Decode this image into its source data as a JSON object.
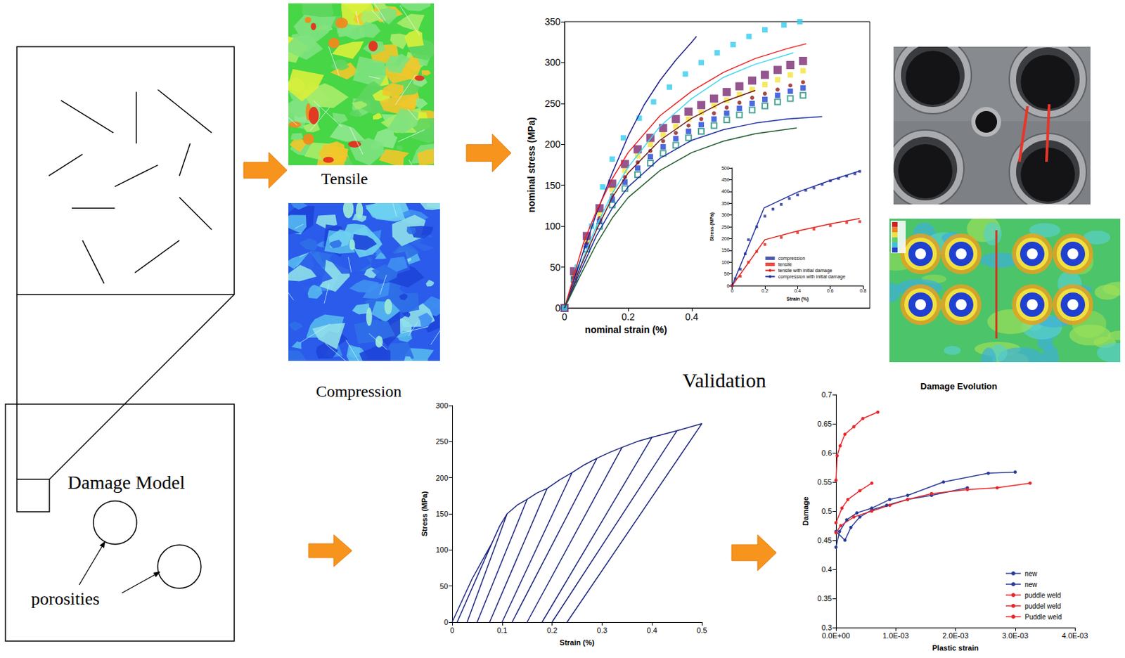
{
  "diagram": {
    "damage_model": {
      "title": "Damage Model",
      "porosity_label": "porosities"
    },
    "contour_labels": [
      "Tensile",
      "Compression"
    ],
    "validation_label": "Validation"
  },
  "chart_data": [
    {
      "type": "line",
      "xlabel": "nominal strain (%)",
      "ylabel": "nominal stress (MPa)",
      "xlim": [
        0,
        0.96
      ],
      "xticks": [
        0,
        0.2,
        0.4
      ],
      "ylim": [
        0,
        350
      ],
      "yticks": [
        0,
        50,
        100,
        150,
        200,
        250,
        300,
        350
      ],
      "grid": false,
      "series": [
        {
          "color": "#1c1c8e",
          "marker": "none",
          "line_style": "solid",
          "x": [
            0,
            0.03,
            0.06,
            0.1,
            0.15,
            0.2,
            0.25,
            0.3,
            0.35,
            0.4,
            0.415
          ],
          "values": [
            0,
            35,
            70,
            115,
            165,
            210,
            248,
            278,
            303,
            325,
            332
          ]
        },
        {
          "color": "#ee1c1c",
          "marker": "none",
          "line_style": "solid",
          "x": [
            0,
            0.03,
            0.06,
            0.1,
            0.15,
            0.2,
            0.3,
            0.4,
            0.5,
            0.6,
            0.7,
            0.76
          ],
          "values": [
            0,
            40,
            80,
            118,
            158,
            190,
            235,
            265,
            288,
            305,
            317,
            323
          ]
        },
        {
          "color": "#3fd8ee",
          "marker": "none",
          "line_style": "solid",
          "x": [
            0,
            0.03,
            0.06,
            0.1,
            0.15,
            0.2,
            0.3,
            0.4,
            0.5,
            0.6,
            0.72
          ],
          "values": [
            0,
            30,
            62,
            100,
            140,
            172,
            222,
            256,
            282,
            298,
            312
          ]
        },
        {
          "color": "#6e1a1a",
          "marker": "none",
          "line_style": "solid",
          "x": [
            0,
            0.05,
            0.1,
            0.15,
            0.2,
            0.3,
            0.4,
            0.5,
            0.6
          ],
          "values": [
            0,
            50,
            95,
            135,
            165,
            205,
            232,
            252,
            266
          ]
        },
        {
          "color": "#1f2fa0",
          "marker": "none",
          "line_style": "solid",
          "x": [
            0,
            0.05,
            0.1,
            0.15,
            0.2,
            0.3,
            0.4,
            0.5,
            0.6,
            0.7,
            0.81
          ],
          "values": [
            0,
            45,
            88,
            122,
            148,
            183,
            205,
            218,
            226,
            231,
            234
          ]
        },
        {
          "color": "#1e5a2a",
          "marker": "none",
          "line_style": "solid",
          "x": [
            0,
            0.05,
            0.1,
            0.15,
            0.2,
            0.3,
            0.4,
            0.5,
            0.6,
            0.73
          ],
          "values": [
            0,
            40,
            78,
            110,
            135,
            168,
            190,
            204,
            213,
            220
          ]
        },
        {
          "color": "#1f8f7a",
          "marker": "open_square",
          "line_style": "none",
          "x": [
            0,
            0.03,
            0.07,
            0.11,
            0.15,
            0.19,
            0.23,
            0.27,
            0.31,
            0.35,
            0.39,
            0.43,
            0.47,
            0.51,
            0.55,
            0.59,
            0.63,
            0.67,
            0.71,
            0.75
          ],
          "values": [
            0,
            35,
            72,
            100,
            126,
            146,
            163,
            177,
            189,
            199,
            208,
            216,
            223,
            230,
            236,
            242,
            247,
            252,
            256,
            260
          ]
        },
        {
          "color": "#1f44d6",
          "marker": "square",
          "line_style": "none",
          "x": [
            0,
            0.03,
            0.07,
            0.11,
            0.15,
            0.19,
            0.23,
            0.27,
            0.31,
            0.35,
            0.39,
            0.43,
            0.47,
            0.51,
            0.55,
            0.59,
            0.63,
            0.67,
            0.71,
            0.75
          ],
          "values": [
            0,
            38,
            76,
            106,
            133,
            154,
            171,
            185,
            197,
            207,
            216,
            224,
            231,
            238,
            244,
            250,
            255,
            260,
            265,
            269
          ]
        },
        {
          "color": "#8e1b1b",
          "marker": "circle",
          "line_style": "none",
          "x": [
            0,
            0.03,
            0.07,
            0.11,
            0.15,
            0.19,
            0.23,
            0.27,
            0.31,
            0.35,
            0.39,
            0.43,
            0.47,
            0.51,
            0.55,
            0.59,
            0.63,
            0.67,
            0.71,
            0.75
          ],
          "values": [
            0,
            40,
            80,
            110,
            138,
            160,
            178,
            192,
            204,
            214,
            223,
            231,
            238,
            245,
            251,
            257,
            262,
            267,
            272,
            276
          ]
        },
        {
          "color": "#f2e33c",
          "marker": "square",
          "line_style": "none",
          "x": [
            0,
            0.03,
            0.07,
            0.11,
            0.15,
            0.19,
            0.23,
            0.27,
            0.31,
            0.35,
            0.39,
            0.43,
            0.47,
            0.51,
            0.55,
            0.59,
            0.63,
            0.67,
            0.71,
            0.75
          ],
          "values": [
            0,
            42,
            84,
            116,
            145,
            168,
            186,
            200,
            212,
            222,
            231,
            239,
            247,
            254,
            261,
            267,
            273,
            279,
            285,
            290
          ]
        },
        {
          "color": "#7a2a72",
          "marker": "large_square",
          "line_style": "none",
          "x": [
            0,
            0.03,
            0.07,
            0.11,
            0.15,
            0.19,
            0.23,
            0.27,
            0.31,
            0.35,
            0.39,
            0.43,
            0.47,
            0.51,
            0.55,
            0.59,
            0.63,
            0.67,
            0.71,
            0.75
          ],
          "values": [
            0,
            45,
            88,
            122,
            152,
            176,
            194,
            208,
            220,
            231,
            240,
            248,
            256,
            264,
            271,
            278,
            285,
            291,
            297,
            302
          ]
        },
        {
          "color": "#33ccee",
          "marker": "square",
          "line_style": "none",
          "x": [
            0,
            0.04,
            0.085,
            0.12,
            0.15,
            0.185,
            0.235,
            0.28,
            0.33,
            0.38,
            0.43,
            0.48,
            0.53,
            0.58,
            0.63,
            0.69,
            0.74
          ],
          "values": [
            0,
            50,
            100,
            148,
            182,
            208,
            232,
            252,
            270,
            286,
            300,
            312,
            322,
            332,
            340,
            346,
            350
          ]
        }
      ]
    },
    {
      "type": "line",
      "xlabel": "Strain (%)",
      "ylabel": "Stress (MPa)",
      "xlim": [
        0,
        0.8
      ],
      "xticks": [
        0,
        0.2,
        0.4,
        0.6,
        0.8
      ],
      "ylim": [
        0,
        500
      ],
      "yticks": [
        0,
        50,
        100,
        150,
        200,
        250,
        300,
        350,
        400,
        450,
        500
      ],
      "grid": false,
      "legend": "lower right",
      "series": [
        {
          "name": "compression",
          "color": "#1f2f9a",
          "marker": "small_square",
          "line_style": "none",
          "x": [
            0,
            0.02,
            0.05,
            0.08,
            0.1,
            0.15,
            0.2,
            0.25,
            0.3,
            0.35,
            0.4,
            0.45,
            0.5,
            0.55,
            0.6,
            0.65,
            0.7,
            0.75,
            0.78
          ],
          "values": [
            0,
            30,
            70,
            135,
            195,
            250,
            295,
            325,
            345,
            370,
            385,
            405,
            415,
            430,
            445,
            455,
            465,
            475,
            485
          ]
        },
        {
          "name": "tensile",
          "color": "#e0201c",
          "marker": "small_square",
          "line_style": "none",
          "x": [
            0,
            0.05,
            0.1,
            0.15,
            0.2,
            0.3,
            0.4,
            0.5,
            0.6,
            0.7,
            0.78
          ],
          "values": [
            0,
            40,
            100,
            145,
            175,
            205,
            225,
            240,
            255,
            268,
            272
          ]
        },
        {
          "name": "tensile with initial damage",
          "color": "#e0201c",
          "marker": "none",
          "line_style": "solid",
          "x": [
            0,
            0.2,
            0.4,
            0.6,
            0.78
          ],
          "values": [
            0,
            195,
            232,
            262,
            285
          ]
        },
        {
          "name": "compression with initial damage",
          "color": "#1f2f9a",
          "marker": "none",
          "line_style": "solid",
          "x": [
            0,
            0.195,
            0.4,
            0.6,
            0.78
          ],
          "values": [
            0,
            330,
            397,
            447,
            487
          ]
        }
      ]
    },
    {
      "type": "line",
      "xlabel": "Strain (%)",
      "ylabel": "Stress (MPa)",
      "xlim": [
        0,
        0.5
      ],
      "xticks": [
        0,
        0.1,
        0.2,
        0.3,
        0.4,
        0.5
      ],
      "ylim": [
        0,
        300
      ],
      "yticks": [
        0,
        50,
        100,
        150,
        200,
        250,
        300
      ],
      "grid": false,
      "series": [
        {
          "color": "#1a237e",
          "marker": "none",
          "line_style": "solid",
          "x": [
            0,
            0.04,
            0.08,
            0.01,
            0.08,
            0.095,
            0.11,
            0.03,
            0.11,
            0.13,
            0.15,
            0.05,
            0.15,
            0.17,
            0.19,
            0.075,
            0.19,
            0.215,
            0.24,
            0.1,
            0.24,
            0.265,
            0.29,
            0.12,
            0.29,
            0.315,
            0.34,
            0.15,
            0.34,
            0.37,
            0.4,
            0.18,
            0.4,
            0.45,
            0.2,
            0.45,
            0.5,
            0.23
          ],
          "values": [
            0,
            60,
            110,
            0,
            110,
            133,
            150,
            0,
            150,
            162,
            170,
            0,
            170,
            179,
            185,
            0,
            185,
            197,
            207,
            0,
            207,
            218,
            227,
            0,
            227,
            235,
            242,
            0,
            242,
            250,
            256,
            0,
            256,
            265,
            0,
            265,
            275,
            0
          ]
        }
      ]
    },
    {
      "type": "line",
      "title": "Damage Evolution",
      "xlabel": "Plastic strain",
      "ylabel": "Damage",
      "xlim": [
        0,
        0.004
      ],
      "xticks": [
        {
          "value": 0,
          "label": "0.0E+00"
        },
        {
          "value": 0.001,
          "label": "1.0E-03"
        },
        {
          "value": 0.002,
          "label": "2.0E-03"
        },
        {
          "value": 0.003,
          "label": "3.0E-03"
        },
        {
          "value": 0.004,
          "label": "4.0E-03"
        }
      ],
      "ylim": [
        0.3,
        0.7
      ],
      "yticks": [
        0.3,
        0.35,
        0.4,
        0.45,
        0.5,
        0.55,
        0.6,
        0.65,
        0.7
      ],
      "grid": false,
      "legend": "lower right",
      "series": [
        {
          "name": "new",
          "color": "#2a3c96",
          "marker": "circle",
          "line_style": "solid",
          "x": [
            0,
            6e-05,
            0.00018,
            0.00035,
            0.0006,
            0.0009,
            0.0012,
            0.0018,
            0.00255,
            0.003
          ],
          "values": [
            0.438,
            0.465,
            0.485,
            0.497,
            0.505,
            0.52,
            0.527,
            0.55,
            0.565,
            0.567
          ]
        },
        {
          "name": "new",
          "color": "#2a3c96",
          "marker": "circle",
          "line_style": "solid",
          "x": [
            0,
            0.00015,
            0.00025,
            0.0004,
            0.0006,
            0.00085,
            0.0012,
            0.0016,
            0.0022
          ],
          "values": [
            0.465,
            0.45,
            0.472,
            0.49,
            0.502,
            0.51,
            0.52,
            0.527,
            0.54
          ]
        },
        {
          "name": "puddle weld",
          "color": "#e8262b",
          "marker": "circle",
          "line_style": "solid",
          "x": [
            0,
            2e-05,
            7e-05,
            0.00015,
            0.0003,
            0.00045,
            0.0007
          ],
          "values": [
            0.553,
            0.595,
            0.612,
            0.632,
            0.645,
            0.659,
            0.67
          ]
        },
        {
          "name": "puddel weld",
          "color": "#e8262b",
          "marker": "circle",
          "line_style": "solid",
          "x": [
            0,
            0.0001,
            0.0002,
            0.0004,
            0.0006
          ],
          "values": [
            0.48,
            0.505,
            0.52,
            0.535,
            0.548
          ]
        },
        {
          "name": "Puddle weld",
          "color": "#e8262b",
          "marker": "circle",
          "line_style": "solid",
          "x": [
            0,
            8e-05,
            0.0003,
            0.0006,
            0.0009,
            0.0012,
            0.0016,
            0.0022,
            0.0027,
            0.00325
          ],
          "values": [
            0.463,
            0.475,
            0.49,
            0.5,
            0.51,
            0.52,
            0.53,
            0.537,
            0.54,
            0.548
          ]
        }
      ]
    }
  ]
}
